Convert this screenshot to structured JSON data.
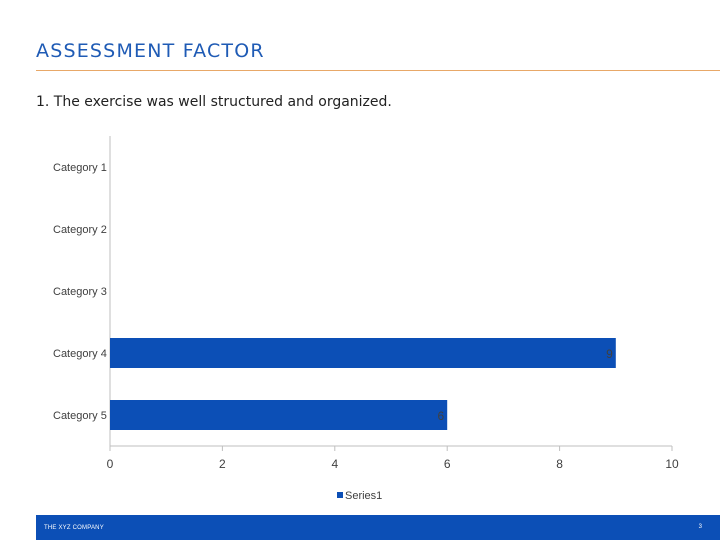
{
  "slide": {
    "title": "ASSESSMENT FACTOR",
    "question": "1. The exercise was well structured and organized."
  },
  "chart_data": {
    "type": "bar",
    "orientation": "horizontal",
    "categories": [
      "Category 1",
      "Category 2",
      "Category 3",
      "Category 4",
      "Category 5"
    ],
    "series": [
      {
        "name": "Series1",
        "values": [
          0,
          0,
          0,
          9,
          6
        ],
        "color": "#0c4fb6"
      }
    ],
    "data_labels": [
      "",
      "",
      "",
      "9",
      "6"
    ],
    "x_ticks": [
      "0",
      "2",
      "4",
      "6",
      "8",
      "10"
    ],
    "xlim": [
      0,
      10
    ],
    "grid": false,
    "legend_position": "bottom"
  },
  "footer": {
    "company": "THE XYZ COMPANY",
    "page_number": "3"
  },
  "colors": {
    "title": "#1f5bb5",
    "accent_rule": "#e8a868",
    "bar": "#0c4fb6",
    "footer_bg": "#0c4fb6"
  }
}
